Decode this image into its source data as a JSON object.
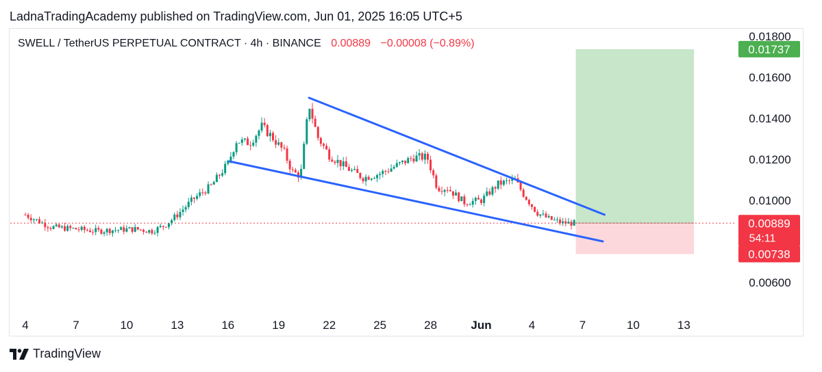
{
  "header": {
    "published": "LadnaTradingAcademy published on TradingView.com, Jun 01, 2025 16:05 UTC+5"
  },
  "symbol": {
    "name": "SWELL / TetherUS PERPETUAL CONTRACT · 4h · BINANCE",
    "price": "0.00889",
    "change": "−0.00008 (−0.89%)"
  },
  "footer": {
    "brand": "TradingView",
    "logo_icon": "tradingview-logo-icon"
  },
  "colors": {
    "up": "#089981",
    "down": "#f23645",
    "trendline": "#2962ff",
    "target_zone": "#c8e6c9",
    "stop_zone": "#fcd8dc",
    "target_badge": "#4caf50",
    "price_badge": "#f23645"
  },
  "chart_data": {
    "type": "candlestick",
    "title": "SWELL / TetherUS PERPETUAL CONTRACT · 4h · BINANCE",
    "x_ticks": [
      "4",
      "7",
      "10",
      "13",
      "16",
      "19",
      "22",
      "25",
      "28",
      "Jun",
      "4",
      "7",
      "10",
      "13"
    ],
    "y_ticks": [
      "0.01800",
      "0.01600",
      "0.01400",
      "0.01200",
      "0.01000",
      "0.00600"
    ],
    "ylim": [
      0.0048,
      0.0187
    ],
    "price_axis_badges": {
      "target": "0.01737",
      "last_price": "0.00889",
      "countdown": "54:11",
      "stop": "0.00738"
    },
    "last_price": 0.00889,
    "close_path": [
      [
        0,
        0.0093
      ],
      [
        1.5,
        0.0087
      ],
      [
        3,
        0.0086
      ],
      [
        4.3,
        0.0085
      ],
      [
        5,
        0.00855
      ],
      [
        6.5,
        0.0086
      ],
      [
        7.5,
        0.0085
      ],
      [
        8.3,
        0.0088
      ],
      [
        9,
        0.0093
      ],
      [
        10,
        0.0101
      ],
      [
        11,
        0.0107
      ],
      [
        12,
        0.0118
      ],
      [
        12.5,
        0.0129
      ],
      [
        13.3,
        0.0128
      ],
      [
        14,
        0.0136
      ],
      [
        14.6,
        0.0131
      ],
      [
        15.3,
        0.0124
      ],
      [
        15.8,
        0.0114
      ],
      [
        16.3,
        0.0112
      ],
      [
        16.8,
        0.0147
      ],
      [
        17.3,
        0.0131
      ],
      [
        18,
        0.0122
      ],
      [
        19,
        0.0116
      ],
      [
        20,
        0.0111
      ],
      [
        21,
        0.0113
      ],
      [
        22,
        0.0117
      ],
      [
        23,
        0.0121
      ],
      [
        23.8,
        0.0121
      ],
      [
        24.4,
        0.0106
      ],
      [
        25,
        0.0106
      ],
      [
        26,
        0.0099
      ],
      [
        27,
        0.01
      ],
      [
        28,
        0.0108
      ],
      [
        29,
        0.011
      ],
      [
        29.5,
        0.0103
      ],
      [
        30.3,
        0.0094
      ],
      [
        31,
        0.0091
      ],
      [
        31.8,
        0.0089
      ],
      [
        32.5,
        0.00889
      ]
    ],
    "trendlines": [
      {
        "name": "upper",
        "from": [
          16.8,
          0.015
        ],
        "to": [
          34.3,
          0.0093
        ]
      },
      {
        "name": "lower",
        "from": [
          12.1,
          0.0119
        ],
        "to": [
          34.2,
          0.008
        ]
      }
    ],
    "position": {
      "type": "long",
      "entry": 0.00889,
      "target": 0.01737,
      "stop": 0.00738,
      "x_start": 32.6,
      "x_end": 39.6
    }
  }
}
